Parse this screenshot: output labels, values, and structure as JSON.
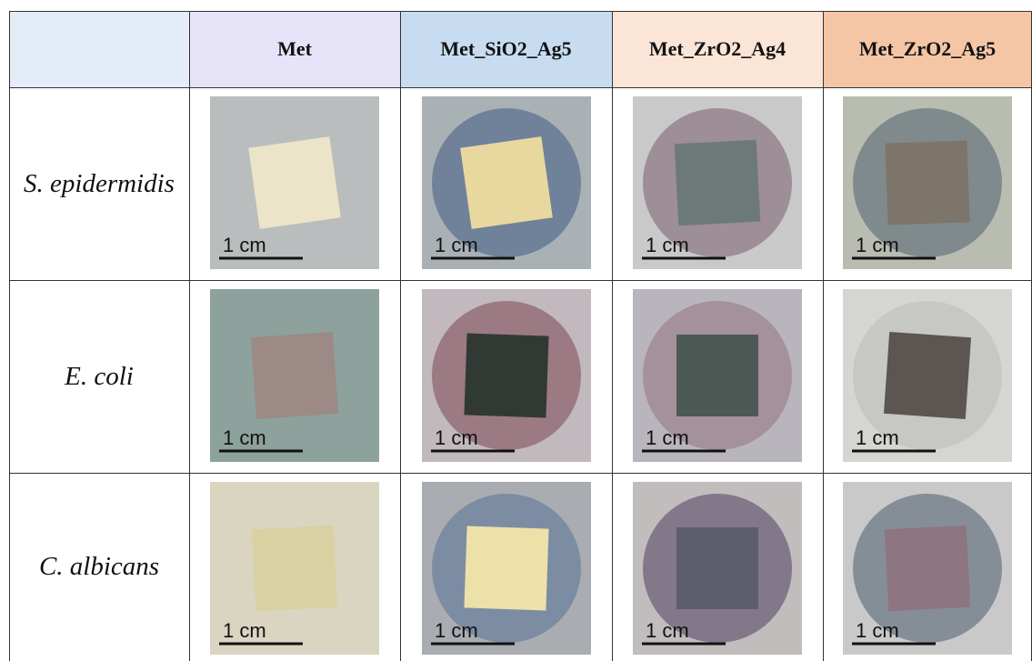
{
  "table": {
    "columns": [
      "Met",
      "Met_SiO2_Ag5",
      "Met_ZrO2_Ag4",
      "Met_ZrO2_Ag5"
    ],
    "rows": [
      {
        "label": "S. epidermidis",
        "scale_labels": [
          "1 cm",
          "1 cm",
          "1 cm",
          "1 cm"
        ]
      },
      {
        "label": "E. coli",
        "scale_labels": [
          "1 cm",
          "1 cm",
          "1 cm",
          "1 cm"
        ]
      },
      {
        "label": "C. albicans",
        "scale_labels": [
          "1 cm",
          "1 cm",
          "1 cm",
          "1 cm"
        ]
      }
    ]
  }
}
